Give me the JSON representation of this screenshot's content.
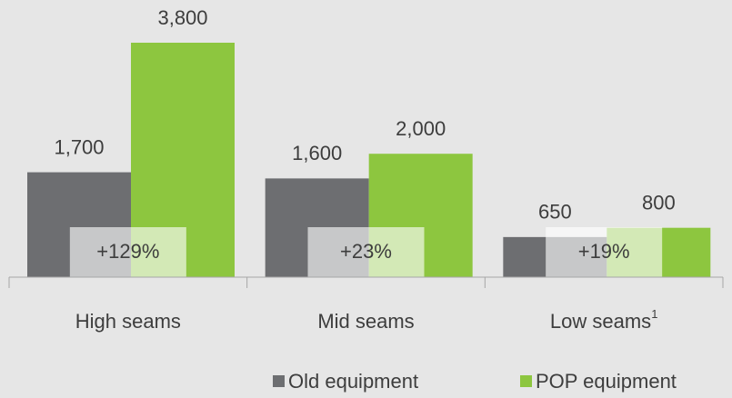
{
  "chart_data": {
    "type": "bar",
    "categories": [
      "High seams",
      "Mid seams",
      "Low seams"
    ],
    "category_superscripts": [
      null,
      null,
      "1"
    ],
    "series": [
      {
        "name": "Old equipment",
        "color": "#6d6e71",
        "values": [
          1700,
          1600,
          650
        ],
        "value_labels": [
          "1,700",
          "1,600",
          "650"
        ]
      },
      {
        "name": "POP equipment",
        "color": "#8dc63f",
        "values": [
          3800,
          2000,
          800
        ],
        "value_labels": [
          "3,800",
          "2,000",
          "800"
        ]
      }
    ],
    "annotations": [
      "+129%",
      "+23%",
      "+19%"
    ],
    "ylim": [
      0,
      3800
    ],
    "legend": "bottom"
  }
}
